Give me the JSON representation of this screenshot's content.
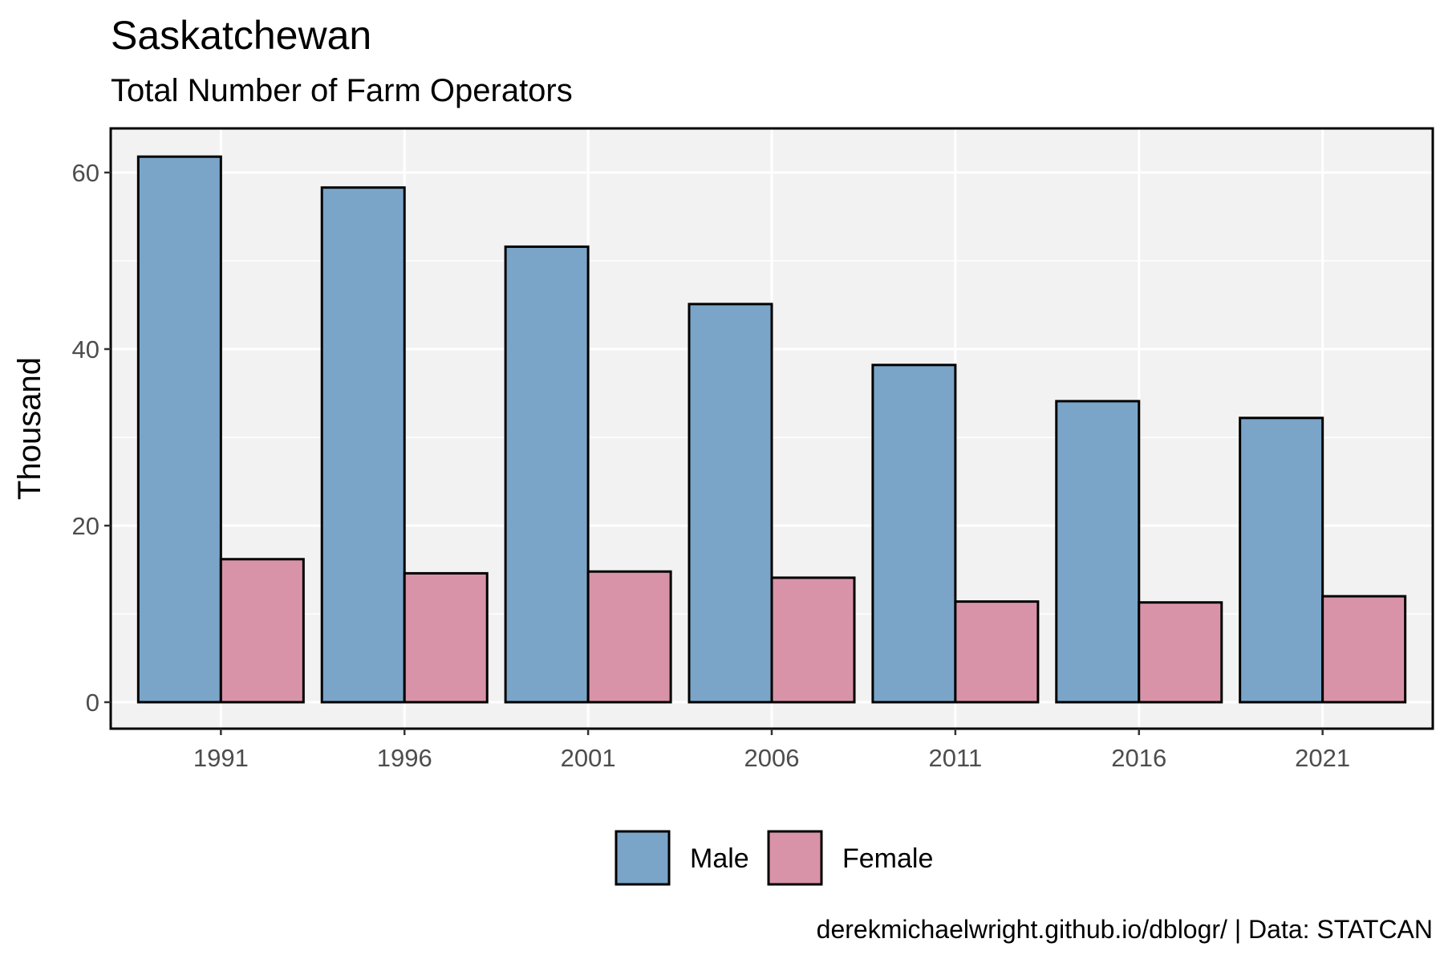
{
  "chart_data": {
    "type": "bar",
    "title": "Saskatchewan",
    "subtitle": "Total Number of Farm Operators",
    "caption": "derekmichaelwright.github.io/dblogr/ | Data: STATCAN",
    "xlabel": "",
    "ylabel": "Thousand",
    "categories": [
      "1991",
      "1996",
      "2001",
      "2006",
      "2011",
      "2016",
      "2021"
    ],
    "series": [
      {
        "name": "Male",
        "color": "#7aa5c9",
        "values": [
          61.8,
          58.3,
          51.6,
          45.1,
          38.2,
          34.1,
          32.2
        ]
      },
      {
        "name": "Female",
        "color": "#d993a8",
        "values": [
          16.2,
          14.6,
          14.8,
          14.1,
          11.4,
          11.3,
          12.0
        ]
      }
    ],
    "ylim": [
      -3,
      65
    ],
    "yticks": [
      0,
      20,
      40,
      60
    ],
    "grid": true,
    "panel_background": "#f2f2f2",
    "legend_position": "bottom"
  }
}
